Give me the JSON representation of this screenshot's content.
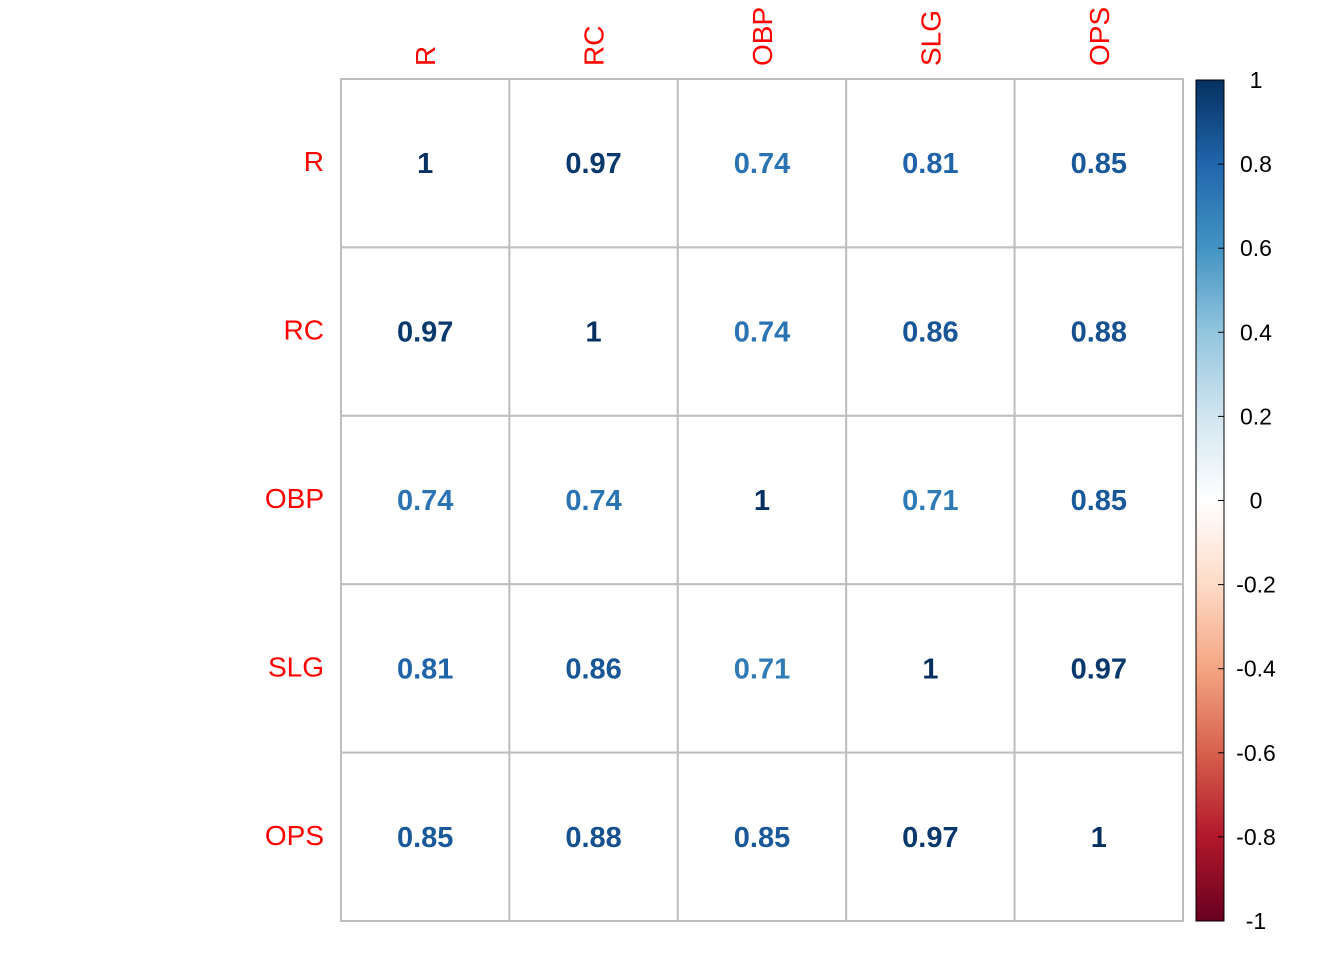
{
  "chart_data": {
    "type": "heatmap",
    "variables": [
      "R",
      "RC",
      "OBP",
      "SLG",
      "OPS"
    ],
    "matrix": [
      [
        1,
        0.97,
        0.74,
        0.81,
        0.85
      ],
      [
        0.97,
        1,
        0.74,
        0.86,
        0.88
      ],
      [
        0.74,
        0.74,
        1,
        0.71,
        0.85
      ],
      [
        0.81,
        0.86,
        0.71,
        1,
        0.97
      ],
      [
        0.85,
        0.88,
        0.85,
        0.97,
        1
      ]
    ],
    "labels": [
      [
        "1",
        "0.97",
        "0.74",
        "0.81",
        "0.85"
      ],
      [
        "0.97",
        "1",
        "0.74",
        "0.86",
        "0.88"
      ],
      [
        "0.74",
        "0.74",
        "1",
        "0.71",
        "0.85"
      ],
      [
        "0.81",
        "0.86",
        "0.71",
        "1",
        "0.97"
      ],
      [
        "0.85",
        "0.88",
        "0.85",
        "0.97",
        "1"
      ]
    ],
    "value_range": [
      -1,
      1
    ],
    "label_color": "#ff0000",
    "grid_color": "#bebebe",
    "colorbar": {
      "position": "right",
      "ticks": [
        "1",
        "0.8",
        "0.6",
        "0.4",
        "0.2",
        "0",
        "-0.2",
        "-0.4",
        "-0.6",
        "-0.8",
        "-1"
      ],
      "tick_values": [
        1,
        0.8,
        0.6,
        0.4,
        0.2,
        0,
        -0.2,
        -0.4,
        -0.6,
        -0.8,
        -1
      ],
      "stops": [
        "#67001f",
        "#b2182b",
        "#d6604d",
        "#f4a582",
        "#fddbc7",
        "#ffffff",
        "#d1e5f0",
        "#92c5de",
        "#4393c3",
        "#2166ac",
        "#053061"
      ]
    }
  }
}
